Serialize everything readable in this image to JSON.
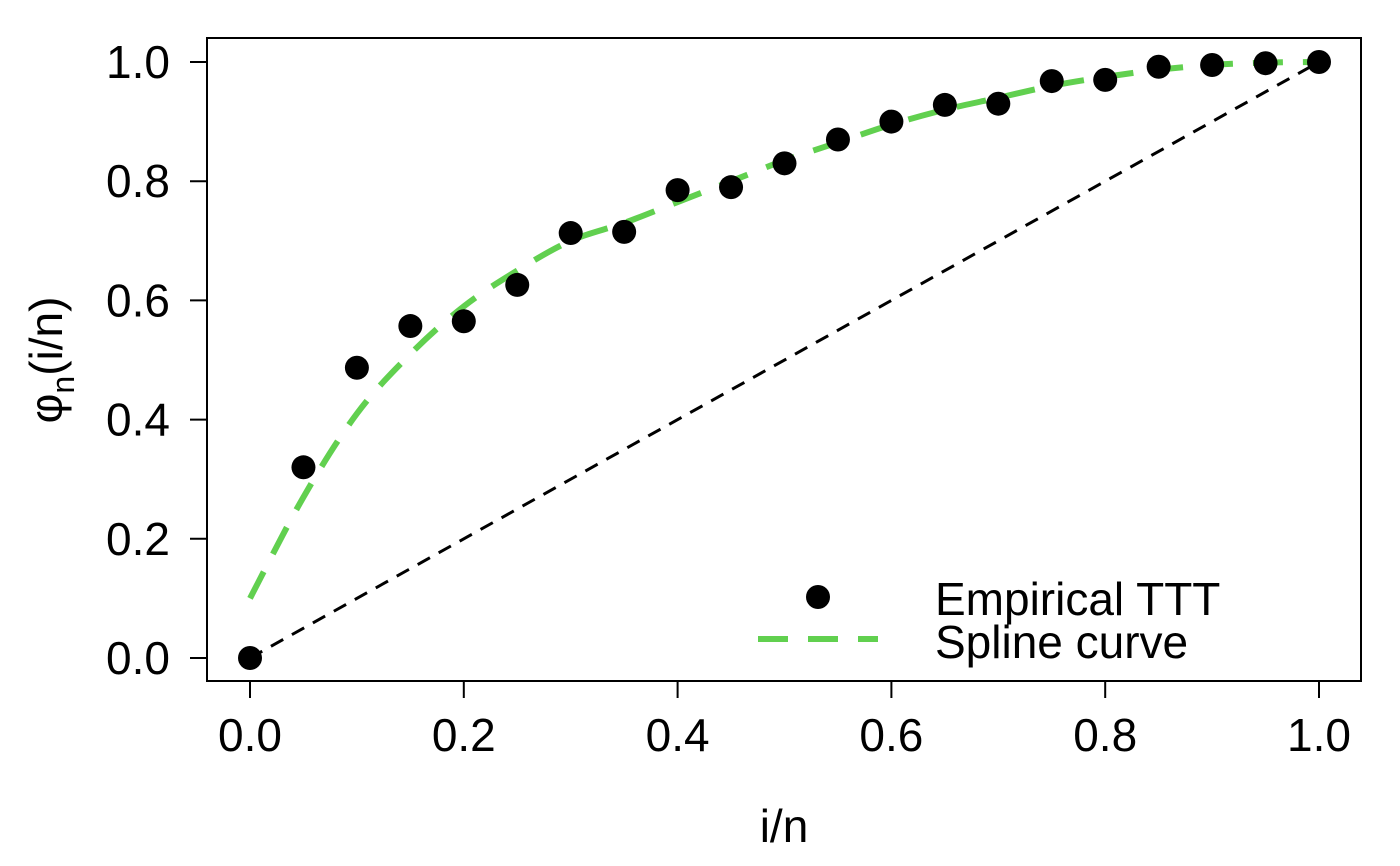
{
  "chart_data": {
    "type": "scatter",
    "xlabel": "i/n",
    "ylabel": {
      "main": "φ",
      "sub": "n",
      "rest": "(i/n)"
    },
    "xlim": [
      0.0,
      1.0
    ],
    "ylim": [
      0.0,
      1.0
    ],
    "xticks": [
      "0.0",
      "0.2",
      "0.4",
      "0.6",
      "0.8",
      "1.0"
    ],
    "yticks": [
      "0.0",
      "0.2",
      "0.4",
      "0.6",
      "0.8",
      "1.0"
    ],
    "grid": false,
    "legend_position": "bottom-right",
    "series": [
      {
        "name": "Empirical TTT",
        "kind": "points",
        "color": "#000000",
        "x": [
          0.0,
          0.05,
          0.1,
          0.15,
          0.2,
          0.25,
          0.3,
          0.35,
          0.4,
          0.45,
          0.5,
          0.55,
          0.6,
          0.65,
          0.7,
          0.75,
          0.8,
          0.85,
          0.9,
          0.95,
          1.0
        ],
        "y": [
          0.0,
          0.32,
          0.487,
          0.557,
          0.565,
          0.626,
          0.713,
          0.715,
          0.785,
          0.79,
          0.83,
          0.87,
          0.9,
          0.928,
          0.93,
          0.968,
          0.97,
          0.992,
          0.995,
          0.998,
          1.0
        ]
      },
      {
        "name": "Spline curve",
        "kind": "dashed-line",
        "color": "#61d04f",
        "x": [
          0.0,
          0.05,
          0.1,
          0.15,
          0.2,
          0.25,
          0.3,
          0.35,
          0.4,
          0.45,
          0.5,
          0.55,
          0.6,
          0.65,
          0.7,
          0.75,
          0.8,
          0.85,
          0.9,
          0.95,
          1.0
        ],
        "y": [
          0.1,
          0.27,
          0.41,
          0.51,
          0.59,
          0.65,
          0.7,
          0.73,
          0.765,
          0.8,
          0.835,
          0.865,
          0.895,
          0.92,
          0.94,
          0.96,
          0.975,
          0.987,
          0.995,
          0.999,
          1.0
        ]
      },
      {
        "name": "",
        "kind": "reference-line",
        "color": "#000000",
        "x": [
          0.0,
          1.0
        ],
        "y": [
          0.0,
          1.0
        ]
      }
    ]
  }
}
